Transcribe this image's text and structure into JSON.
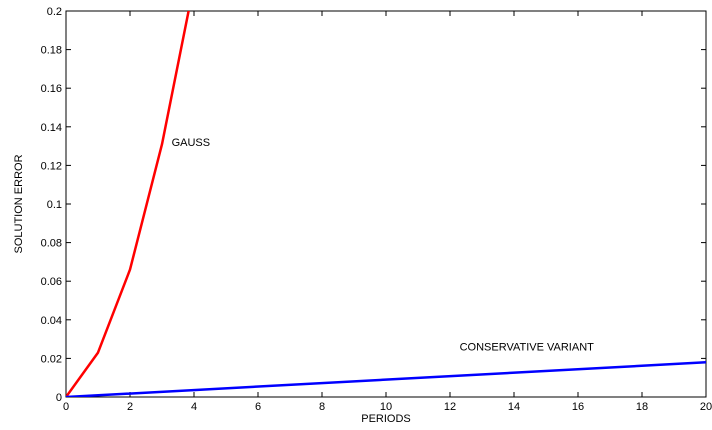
{
  "chart_data": {
    "type": "line",
    "title": "",
    "xlabel": "PERIODS",
    "ylabel": "SOLUTION ERROR",
    "xlim": [
      0,
      20
    ],
    "ylim": [
      0,
      0.2
    ],
    "x_ticks": [
      0,
      2,
      4,
      6,
      8,
      10,
      12,
      14,
      16,
      18,
      20
    ],
    "x_tick_labels": [
      "0",
      "2",
      "4",
      "6",
      "8",
      "10",
      "12",
      "14",
      "16",
      "18",
      "20"
    ],
    "y_ticks": [
      0,
      0.02,
      0.04,
      0.06,
      0.08,
      0.1,
      0.12,
      0.14,
      0.16,
      0.18,
      0.2
    ],
    "y_tick_labels": [
      "0",
      "0.02",
      "0.04",
      "0.06",
      "0.08",
      "0.1",
      "0.12",
      "0.14",
      "0.16",
      "0.18",
      "0.2"
    ],
    "grid": false,
    "legend": "none",
    "series": [
      {
        "name": "GAUSS",
        "color": "#ff0000",
        "x": [
          0,
          1,
          2,
          3,
          4
        ],
        "y": [
          0,
          0.023,
          0.066,
          0.131,
          0.214
        ],
        "annotation": {
          "text": "GAUSS",
          "x": 3.3,
          "y": 0.13
        }
      },
      {
        "name": "CONSERVATIVE VARIANT",
        "color": "#0000ff",
        "x": [
          0,
          20
        ],
        "y": [
          0,
          0.018
        ],
        "annotation": {
          "text": "CONSERVATIVE VARIANT",
          "x": 12.3,
          "y": 0.024
        }
      }
    ]
  }
}
